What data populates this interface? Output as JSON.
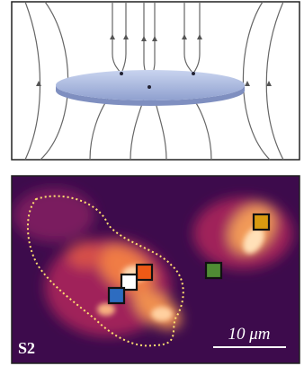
{
  "panel_bottom": {
    "label": "S2",
    "scale_bar": "10 μm"
  }
}
